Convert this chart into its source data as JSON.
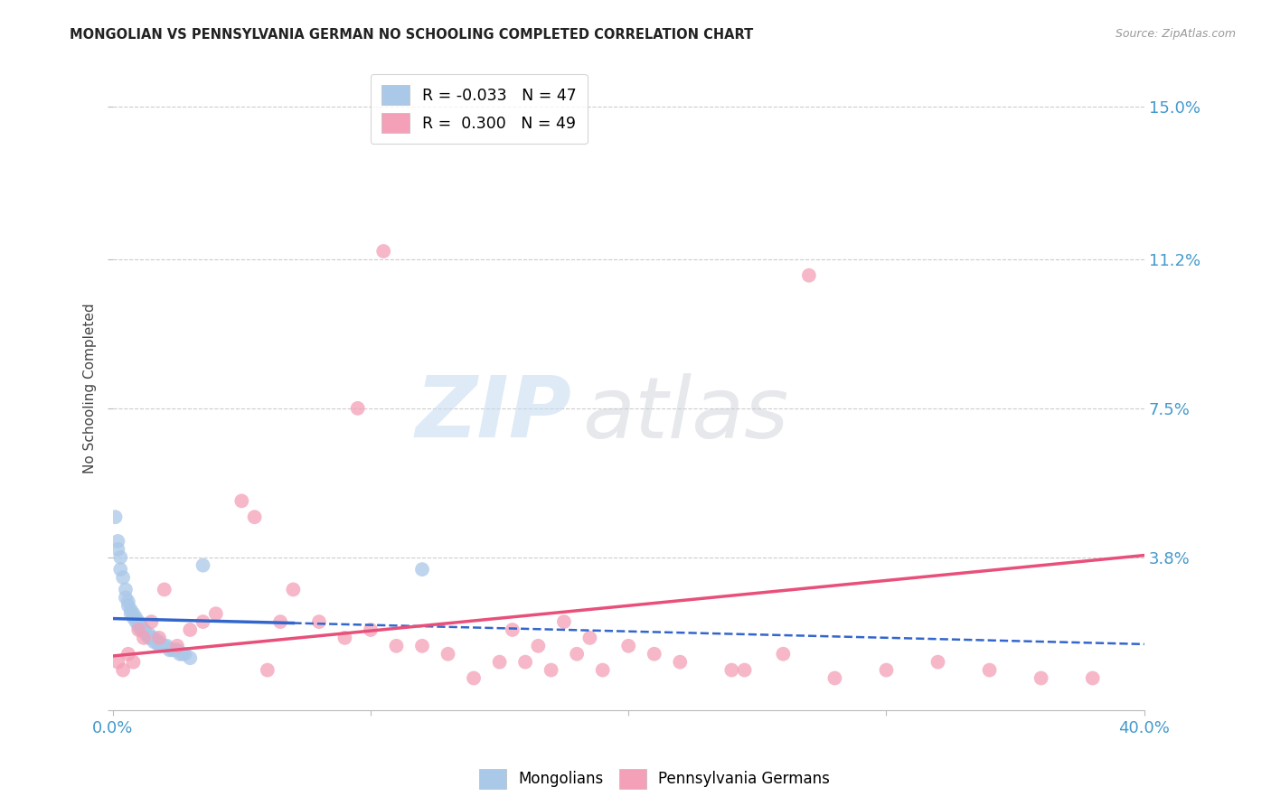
{
  "title": "MONGOLIAN VS PENNSYLVANIA GERMAN NO SCHOOLING COMPLETED CORRELATION CHART",
  "source": "Source: ZipAtlas.com",
  "ylabel": "No Schooling Completed",
  "xlim": [
    0.0,
    0.4
  ],
  "ylim": [
    0.0,
    0.16
  ],
  "yticks": [
    0.0,
    0.038,
    0.075,
    0.112,
    0.15
  ],
  "ytick_labels": [
    "",
    "3.8%",
    "7.5%",
    "11.2%",
    "15.0%"
  ],
  "xticks": [
    0.0,
    0.1,
    0.2,
    0.3,
    0.4
  ],
  "xtick_labels": [
    "0.0%",
    "",
    "",
    "",
    "40.0%"
  ],
  "mongolian_scatter_color": "#aac8e8",
  "pennger_scatter_color": "#f4a0b8",
  "mongolian_line_color": "#3366cc",
  "pennger_line_color": "#e8507a",
  "background_color": "#ffffff",
  "grid_color": "#cccccc",
  "tick_label_color": "#4499cc",
  "mongolian_x": [
    0.001,
    0.002,
    0.002,
    0.003,
    0.003,
    0.004,
    0.005,
    0.005,
    0.006,
    0.006,
    0.007,
    0.007,
    0.008,
    0.008,
    0.009,
    0.009,
    0.01,
    0.01,
    0.011,
    0.011,
    0.012,
    0.012,
    0.013,
    0.013,
    0.014,
    0.014,
    0.015,
    0.015,
    0.016,
    0.016,
    0.017,
    0.017,
    0.018,
    0.018,
    0.019,
    0.02,
    0.021,
    0.022,
    0.023,
    0.024,
    0.025,
    0.026,
    0.027,
    0.028,
    0.03,
    0.035,
    0.12
  ],
  "mongolian_y": [
    0.048,
    0.042,
    0.04,
    0.038,
    0.035,
    0.033,
    0.03,
    0.028,
    0.027,
    0.026,
    0.025,
    0.024,
    0.024,
    0.023,
    0.023,
    0.022,
    0.022,
    0.021,
    0.021,
    0.02,
    0.02,
    0.02,
    0.019,
    0.019,
    0.019,
    0.018,
    0.018,
    0.018,
    0.018,
    0.017,
    0.017,
    0.017,
    0.017,
    0.016,
    0.016,
    0.016,
    0.016,
    0.015,
    0.015,
    0.015,
    0.015,
    0.014,
    0.014,
    0.014,
    0.013,
    0.036,
    0.035
  ],
  "pennger_x": [
    0.002,
    0.004,
    0.006,
    0.008,
    0.01,
    0.012,
    0.015,
    0.018,
    0.02,
    0.025,
    0.03,
    0.035,
    0.04,
    0.05,
    0.055,
    0.06,
    0.065,
    0.07,
    0.08,
    0.09,
    0.1,
    0.11,
    0.12,
    0.13,
    0.14,
    0.15,
    0.16,
    0.17,
    0.18,
    0.19,
    0.2,
    0.22,
    0.24,
    0.26,
    0.28,
    0.3,
    0.32,
    0.34,
    0.36,
    0.38,
    0.095,
    0.105,
    0.27,
    0.245,
    0.155,
    0.165,
    0.175,
    0.185,
    0.21
  ],
  "pennger_y": [
    0.012,
    0.01,
    0.014,
    0.012,
    0.02,
    0.018,
    0.022,
    0.018,
    0.03,
    0.016,
    0.02,
    0.022,
    0.024,
    0.052,
    0.048,
    0.01,
    0.022,
    0.03,
    0.022,
    0.018,
    0.02,
    0.016,
    0.016,
    0.014,
    0.008,
    0.012,
    0.012,
    0.01,
    0.014,
    0.01,
    0.016,
    0.012,
    0.01,
    0.014,
    0.008,
    0.01,
    0.012,
    0.01,
    0.008,
    0.008,
    0.075,
    0.114,
    0.108,
    0.01,
    0.02,
    0.016,
    0.022,
    0.018,
    0.014
  ],
  "mongo_line_x_solid_end": 0.07,
  "legend_mongo": "R = -0.033   N = 47",
  "legend_penn": "R =  0.300   N = 49"
}
